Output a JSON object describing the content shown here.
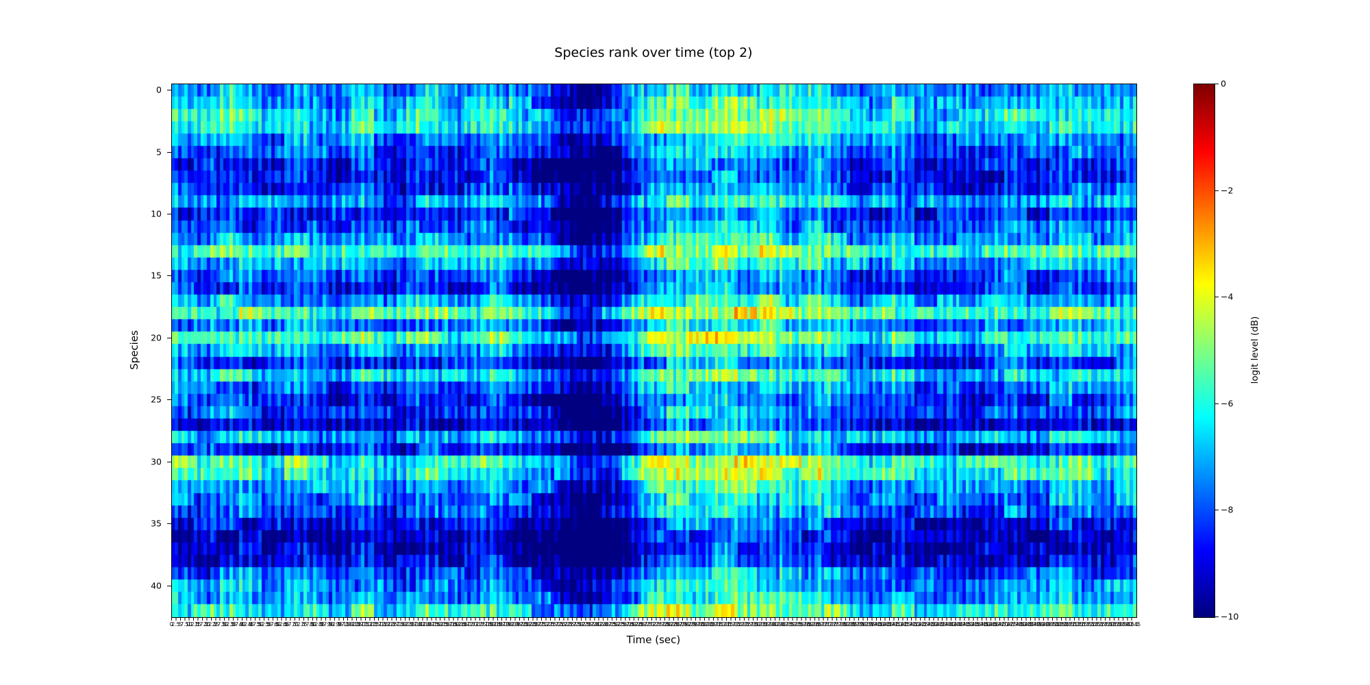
{
  "chart_data": {
    "type": "heatmap",
    "title": "Species rank over time (top 2)",
    "xlabel": "Time (sec)",
    "ylabel": "Species",
    "colorbar_label": "logit level (dB)",
    "colormap": "jet",
    "value_range_db": [
      -10,
      0
    ],
    "colorbar_tick_values": [
      0,
      -2,
      -4,
      -6,
      -8,
      -10
    ],
    "colorbar_tick_labels": [
      "0",
      "−2",
      "−4",
      "−6",
      "−8",
      "−10"
    ],
    "y_tick_values": [
      0,
      5,
      10,
      15,
      20,
      25,
      30,
      35,
      40
    ],
    "y_tick_labels": [
      "0",
      "5",
      "10",
      "15",
      "20",
      "25",
      "30",
      "35",
      "40"
    ],
    "n_species": 43,
    "x_tick_start": 0,
    "x_tick_step": 2.5,
    "x_tick_end": 545,
    "n_cols": 300,
    "row_mean_db": [
      -7.2,
      -6.8,
      -6.2,
      -6.0,
      -7.5,
      -7.8,
      -8.6,
      -8.8,
      -8.2,
      -7.0,
      -8.4,
      -8.0,
      -7.2,
      -5.6,
      -7.0,
      -8.0,
      -8.4,
      -6.8,
      -5.4,
      -7.4,
      -5.6,
      -7.0,
      -8.4,
      -6.4,
      -7.8,
      -8.4,
      -8.0,
      -8.8,
      -6.8,
      -8.4,
      -5.6,
      -6.0,
      -7.0,
      -7.4,
      -7.8,
      -8.8,
      -9.4,
      -9.3,
      -9.0,
      -7.8,
      -7.4,
      -7.0,
      -6.0
    ],
    "col_profile": {
      "pos": [
        0.0,
        0.03,
        0.06,
        0.1,
        0.13,
        0.17,
        0.2,
        0.23,
        0.26,
        0.3,
        0.33,
        0.36,
        0.4,
        0.42,
        0.45,
        0.47,
        0.49,
        0.52,
        0.55,
        0.58,
        0.6,
        0.62,
        0.65,
        0.67,
        0.69,
        0.72,
        0.75,
        0.78,
        0.81,
        0.84,
        0.87,
        0.9,
        0.93,
        0.96,
        1.0
      ],
      "offset_db": [
        0.3,
        -0.3,
        0.5,
        -0.5,
        0.3,
        -0.8,
        0.4,
        -0.9,
        0.2,
        -0.5,
        0.6,
        -0.4,
        -1.6,
        -2.6,
        -2.2,
        -1.0,
        0.6,
        1.5,
        1.1,
        1.8,
        1.0,
        1.5,
        0.5,
        1.4,
        0.3,
        -0.5,
        0.2,
        -0.8,
        -0.2,
        -0.6,
        0.3,
        -0.4,
        0.5,
        -0.2,
        0.4
      ]
    },
    "stripe": {
      "period_cols": 2.9,
      "amplitude_db": 0.7
    },
    "block_size_cols": 7,
    "block_noise_db": 0.8,
    "noise_amplitude_db": 0.6,
    "seed": 42
  }
}
